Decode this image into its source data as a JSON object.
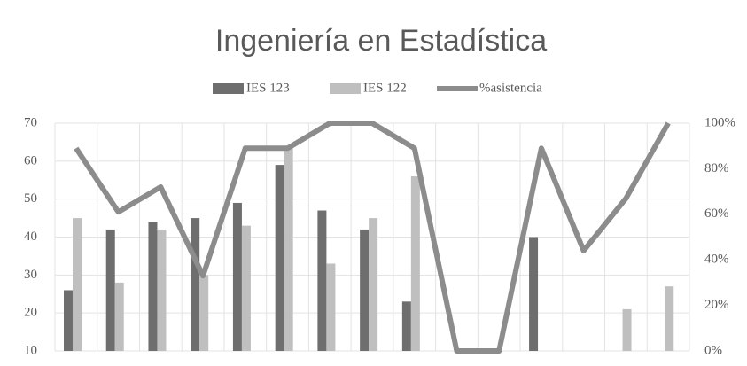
{
  "chart_data": {
    "type": "bar-line",
    "title": "Ingeniería en Estadística",
    "categories": [
      null,
      null,
      null,
      null,
      null,
      null,
      null,
      null,
      null,
      null,
      null,
      null,
      null,
      null,
      null
    ],
    "series": [
      {
        "name": "IES 123",
        "type": "bar",
        "color": "#6e6e6e",
        "values": [
          26,
          42,
          44,
          45,
          49,
          59,
          47,
          42,
          23,
          null,
          null,
          40,
          null,
          null,
          null
        ]
      },
      {
        "name": "IES 122",
        "type": "bar",
        "color": "#bfbfbf",
        "values": [
          45,
          28,
          42,
          30,
          43,
          64,
          33,
          45,
          56,
          null,
          null,
          null,
          null,
          21,
          27
        ]
      },
      {
        "name": "%asistencia",
        "type": "line",
        "axis": "y2",
        "color": "#8c8c8c",
        "values": [
          89,
          61,
          72,
          33,
          89,
          89,
          100,
          100,
          89,
          0,
          0,
          89,
          44,
          67,
          100
        ]
      }
    ],
    "ylim": [
      10,
      70
    ],
    "yticks": [
      10,
      20,
      30,
      40,
      50,
      60,
      70
    ],
    "y2lim": [
      0,
      100
    ],
    "y2ticks": [
      {
        "value": 0,
        "label": "0%"
      },
      {
        "value": 20,
        "label": "20%"
      },
      {
        "value": 40,
        "label": "40%"
      },
      {
        "value": 60,
        "label": "60%"
      },
      {
        "value": 80,
        "label": "80%"
      },
      {
        "value": 100,
        "label": "100%"
      }
    ],
    "grid": true,
    "legend": "top"
  }
}
